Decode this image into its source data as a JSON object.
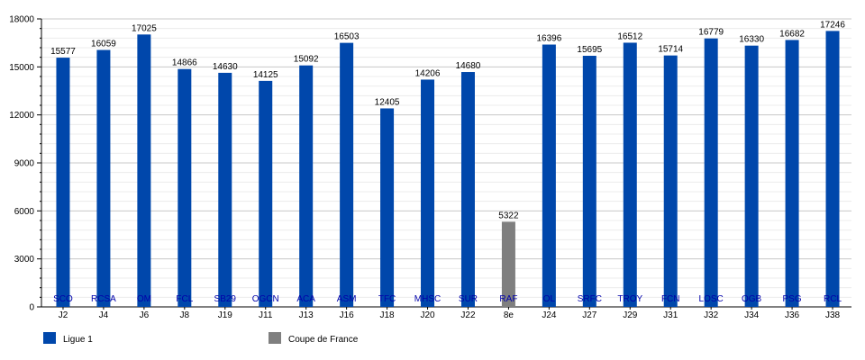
{
  "chart_data": {
    "type": "bar",
    "title": "",
    "xlabel": "",
    "ylabel": "",
    "ylim": [
      0,
      18000
    ],
    "yticks": [
      0,
      3000,
      6000,
      9000,
      12000,
      15000,
      18000
    ],
    "grid": true,
    "legend_position": "bottom-left",
    "categories": [
      "J2",
      "J4",
      "J6",
      "J8",
      "J19",
      "J11",
      "J13",
      "J16",
      "J18",
      "J20",
      "J22",
      "8e",
      "J24",
      "J27",
      "J29",
      "J31",
      "J32",
      "J34",
      "J36",
      "J38"
    ],
    "opponents": [
      "SCO",
      "RCSA",
      "OM",
      "FCL",
      "SB29",
      "OGCN",
      "ACA",
      "ASM",
      "TFC",
      "MHSC",
      "SUR",
      "RAF",
      "OL",
      "SRFC",
      "TROY",
      "FCN",
      "LOSC",
      "OGB",
      "PSG",
      "RCL"
    ],
    "values": [
      15577,
      16059,
      17025,
      14866,
      14630,
      14125,
      15092,
      16503,
      12405,
      14206,
      14680,
      5322,
      16396,
      15695,
      16512,
      15714,
      16779,
      16330,
      16682,
      17246
    ],
    "competition": [
      "Ligue 1",
      "Ligue 1",
      "Ligue 1",
      "Ligue 1",
      "Ligue 1",
      "Ligue 1",
      "Ligue 1",
      "Ligue 1",
      "Ligue 1",
      "Ligue 1",
      "Ligue 1",
      "Coupe de France",
      "Ligue 1",
      "Ligue 1",
      "Ligue 1",
      "Ligue 1",
      "Ligue 1",
      "Ligue 1",
      "Ligue 1",
      "Ligue 1"
    ],
    "series": [
      {
        "name": "Ligue 1",
        "color": "#0047ab"
      },
      {
        "name": "Coupe de France",
        "color": "#7f7f7f"
      }
    ]
  }
}
